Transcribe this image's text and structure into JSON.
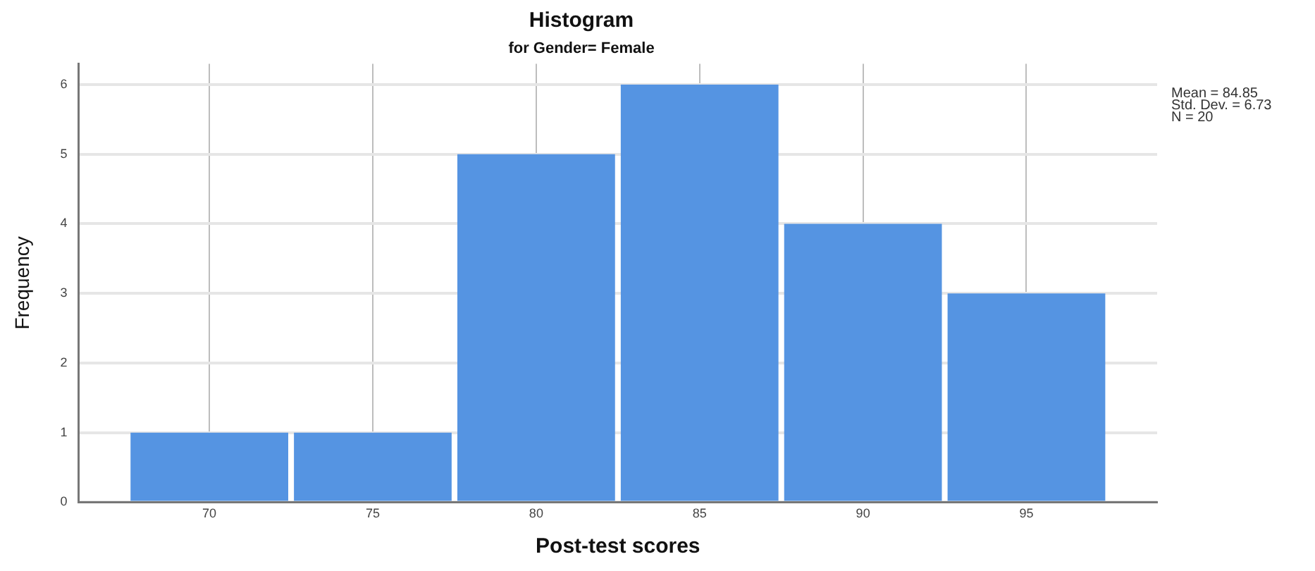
{
  "chart_data": {
    "type": "histogram",
    "title": "Histogram",
    "subtitle": "for Gender= Female",
    "xlabel": "Post-test scores",
    "ylabel": "Frequency",
    "bins": [
      67.5,
      72.5,
      77.5,
      82.5,
      87.5,
      92.5,
      97.5
    ],
    "values": [
      1,
      1,
      5,
      6,
      4,
      3
    ],
    "color": "#5594e2",
    "xlim": [
      66,
      99
    ],
    "xticks": [
      70,
      75,
      80,
      85,
      90,
      95
    ],
    "ylim": [
      0,
      6.3
    ],
    "yticks": [
      0,
      1,
      2,
      3,
      4,
      5,
      6
    ],
    "grid": true,
    "legend": false,
    "annotations": [
      "Mean = 84.85",
      "Std. Dev. = 6.73",
      "N = 20"
    ]
  }
}
